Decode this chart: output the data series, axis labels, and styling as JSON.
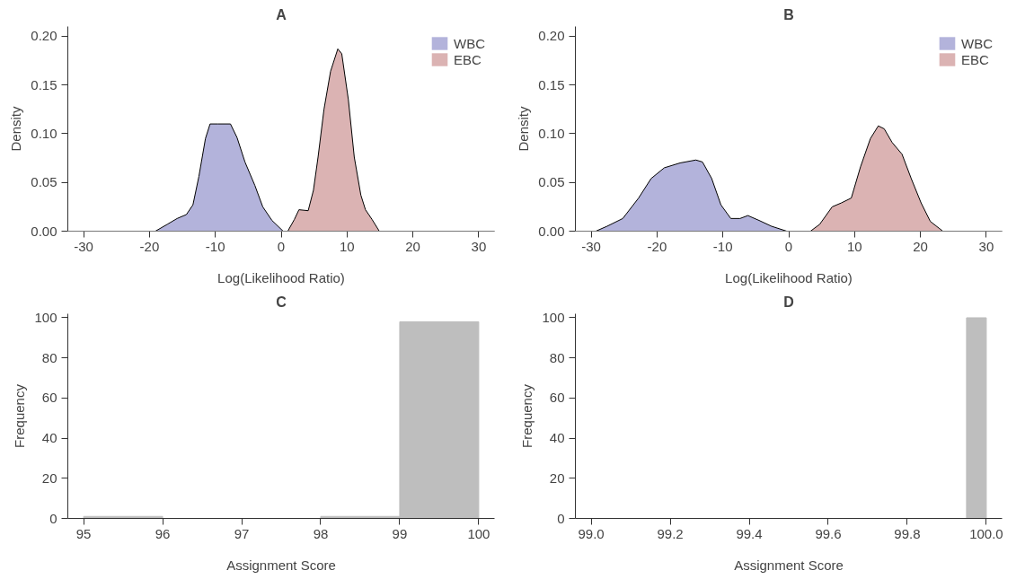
{
  "chart_data": [
    {
      "type": "area",
      "title": "A",
      "xlabel": "Log(Likelihood Ratio)",
      "ylabel": "Density",
      "legend": "top right",
      "line_style": "solid",
      "xlim": [
        -32.4,
        32.4
      ],
      "xticks": [
        -30,
        -20,
        -10,
        0,
        10,
        20,
        30
      ],
      "ylim": [
        0,
        0.21
      ],
      "yticks": [
        {
          "value": 0,
          "label": "0.00"
        },
        0.05,
        {
          "value": 0.1,
          "label": "0.10"
        },
        0.15,
        {
          "value": 0.2,
          "label": "0.20"
        }
      ],
      "ref_lines": [
        {
          "axis": "y",
          "value": 0,
          "color": "#bebebe"
        }
      ],
      "series": [
        {
          "name": "WBC",
          "color": "#b3b3db",
          "x": [
            -19.1,
            -17.3,
            -15.8,
            -14.4,
            -13.4,
            -12.5,
            -11.5,
            -10.8,
            -9.6,
            -7.7,
            -6.7,
            -5.5,
            -4.0,
            -2.8,
            -1.4,
            0.3
          ],
          "values": [
            0,
            0.007,
            0.013,
            0.017,
            0.027,
            0.056,
            0.095,
            0.11,
            0.11,
            0.11,
            0.096,
            0.071,
            0.047,
            0.025,
            0.011,
            0
          ]
        },
        {
          "name": "EBC",
          "color": "#dbb3b3",
          "x": [
            1.0,
            2.0,
            2.7,
            4.1,
            4.9,
            5.6,
            6.5,
            7.5,
            8.6,
            9.2,
            10.2,
            11.1,
            12.1,
            12.8,
            13.8,
            14.9
          ],
          "values": [
            0,
            0.012,
            0.022,
            0.021,
            0.042,
            0.076,
            0.125,
            0.164,
            0.187,
            0.182,
            0.135,
            0.076,
            0.037,
            0.022,
            0.012,
            0
          ]
        }
      ]
    },
    {
      "type": "area",
      "title": "B",
      "xlabel": "Log(Likelihood Ratio)",
      "ylabel": "Density",
      "legend": "top right",
      "line_style": "solid",
      "xlim": [
        -32.4,
        32.4
      ],
      "xticks": [
        -30,
        -20,
        -10,
        0,
        10,
        20,
        30
      ],
      "ylim": [
        0,
        0.21
      ],
      "yticks": [
        {
          "value": 0,
          "label": "0.00"
        },
        0.05,
        {
          "value": 0.1,
          "label": "0.10"
        },
        0.15,
        {
          "value": 0.2,
          "label": "0.20"
        }
      ],
      "ref_lines": [
        {
          "axis": "y",
          "value": 0,
          "color": "#bebebe"
        }
      ],
      "series": [
        {
          "name": "WBC",
          "color": "#b3b3db",
          "x": [
            -29.3,
            -27.6,
            -25.2,
            -22.8,
            -20.9,
            -18.9,
            -16.5,
            -14.1,
            -13.1,
            -11.7,
            -10.3,
            -8.8,
            -7.4,
            -6.2,
            -4.5,
            -2.6,
            -0.3
          ],
          "values": [
            0,
            0.005,
            0.013,
            0.034,
            0.054,
            0.065,
            0.07,
            0.073,
            0.071,
            0.054,
            0.027,
            0.013,
            0.013,
            0.016,
            0.011,
            0.005,
            0
          ]
        },
        {
          "name": "EBC",
          "color": "#dbb3b3",
          "x": [
            3.3,
            4.7,
            6.6,
            8.0,
            9.5,
            10.9,
            12.4,
            13.6,
            14.5,
            15.7,
            17.2,
            18.6,
            20.1,
            21.5,
            23.4
          ],
          "values": [
            0,
            0.007,
            0.025,
            0.029,
            0.034,
            0.066,
            0.095,
            0.108,
            0.105,
            0.091,
            0.079,
            0.054,
            0.029,
            0.01,
            0
          ]
        }
      ]
    },
    {
      "type": "histogram",
      "title": "C",
      "xlabel": "Assignment Score",
      "ylabel": "Frequency",
      "color": "#bebebe",
      "xlim": [
        94.8,
        100.2
      ],
      "xticks": [
        95,
        96,
        97,
        98,
        99,
        100
      ],
      "ylim": [
        0,
        102
      ],
      "yticks": [
        0,
        20,
        40,
        60,
        80,
        100
      ],
      "bins": [
        95,
        96,
        97,
        98,
        99,
        100
      ],
      "values": [
        1,
        0,
        0,
        1,
        98
      ]
    },
    {
      "type": "histogram",
      "title": "D",
      "xlabel": "Assignment Score",
      "ylabel": "Frequency",
      "color": "#bebebe",
      "xlim": [
        98.96,
        100.04
      ],
      "xticks": [
        {
          "value": 99,
          "label": "99.0"
        },
        99.2,
        99.4,
        99.6,
        99.8,
        {
          "value": 100,
          "label": "100.0"
        }
      ],
      "ylim": [
        0,
        102
      ],
      "yticks": [
        0,
        20,
        40,
        60,
        80,
        100
      ],
      "bins": [
        99.0,
        99.05,
        99.1,
        99.15,
        99.2,
        99.25,
        99.3,
        99.35,
        99.4,
        99.45,
        99.5,
        99.55,
        99.6,
        99.65,
        99.7,
        99.75,
        99.8,
        99.85,
        99.9,
        99.95,
        100.0
      ],
      "values": [
        0,
        0,
        0,
        0,
        0,
        0,
        0,
        0,
        0,
        0,
        0,
        0,
        0,
        0,
        0,
        0,
        0,
        0,
        0,
        100
      ]
    }
  ]
}
